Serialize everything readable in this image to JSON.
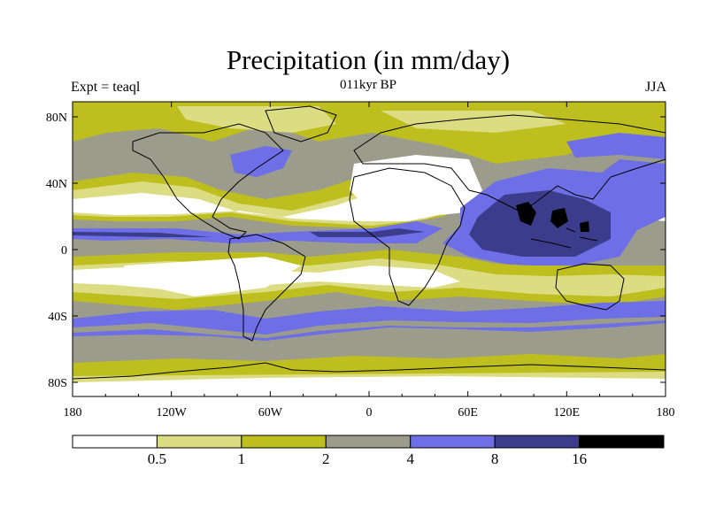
{
  "title": "Precipitation (in mm/day)",
  "left_label": "Expt = teaql",
  "center_label": "011kyr BP",
  "right_label": "JJA",
  "x_ticks": [
    "180",
    "120W",
    "60W",
    "0",
    "60E",
    "120E",
    "180"
  ],
  "y_ticks": [
    "80N",
    "40N",
    "0",
    "40S",
    "80S"
  ],
  "colorbar": {
    "colors": [
      "#ffffff",
      "#dcdc82",
      "#bebe1e",
      "#9c9c8c",
      "#6e6ee6",
      "#3c3c8c",
      "#000000"
    ],
    "labels": [
      "0.5",
      "1",
      "2",
      "4",
      "8",
      "16"
    ]
  },
  "colors": {
    "land_outline": "#000000",
    "ocean_base": "#9c9c8c"
  }
}
